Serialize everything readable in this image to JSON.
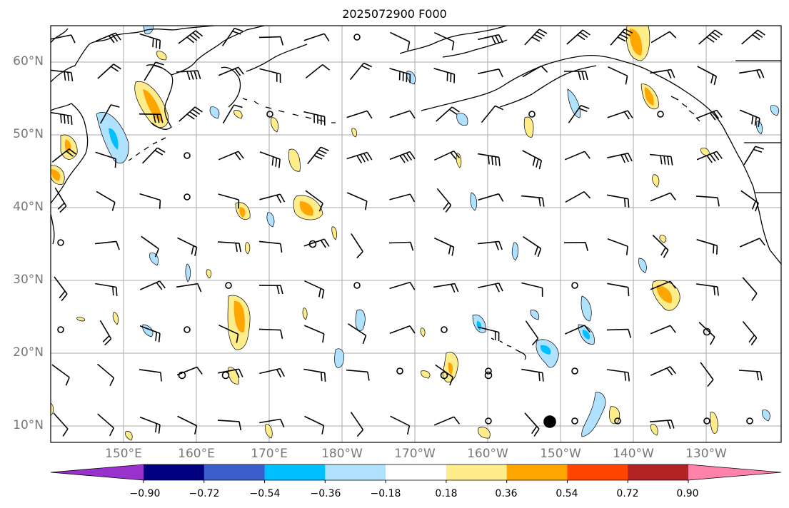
{
  "title": "2025072900 F000",
  "lat_labels": [
    "60°N",
    "50°N",
    "40°N",
    "30°N",
    "20°N",
    "10°N"
  ],
  "lon_labels": [
    "150°E",
    "160°E",
    "170°E",
    "180°W",
    "170°W",
    "160°W",
    "150°W",
    "140°W",
    "130°W"
  ],
  "colorbar": {
    "colors": [
      "#9932cc",
      "#000080",
      "#3a5fcd",
      "#00bfff",
      "#b0e2ff",
      "#ffffff",
      "#ffec8b",
      "#ffa500",
      "#ff4500",
      "#b22222",
      "#ff82ab"
    ],
    "tick_labels": [
      "−0.90",
      "−0.72",
      "−0.54",
      "−0.36",
      "−0.18",
      "0.18",
      "0.36",
      "0.54",
      "0.72",
      "0.90"
    ]
  },
  "colors": {
    "grid": "#aaaaaa",
    "coast": "#000000",
    "axis_label": "#777777"
  }
}
